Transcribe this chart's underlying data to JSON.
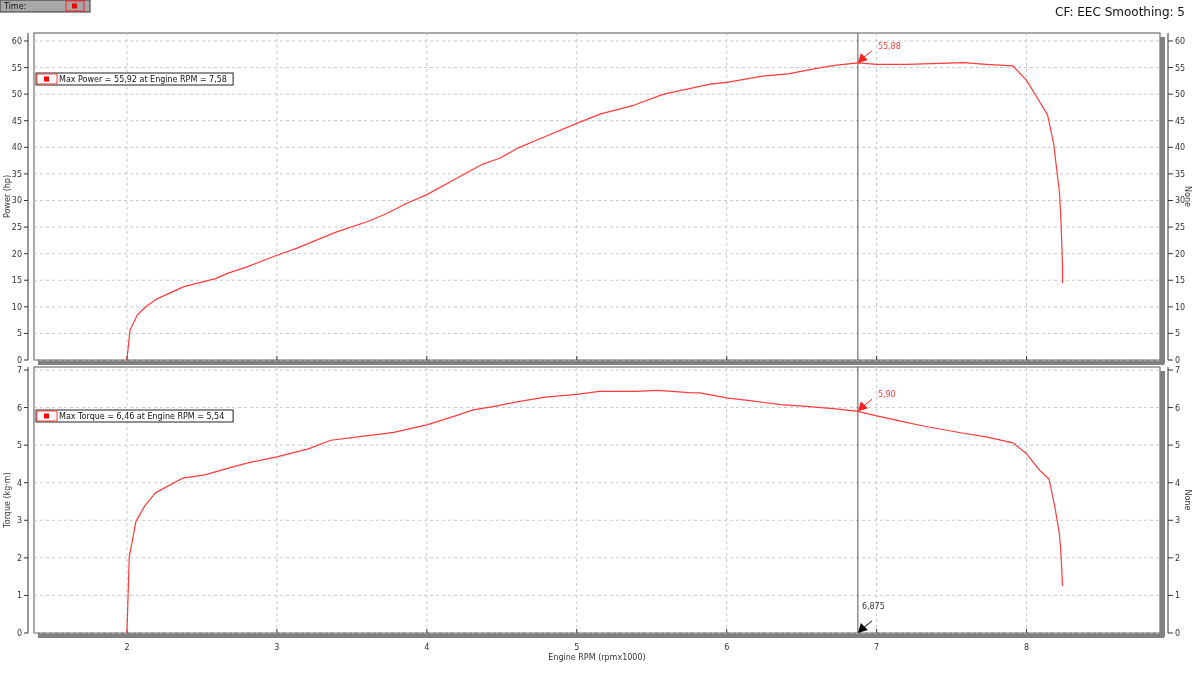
{
  "chart_data": [
    {
      "type": "line",
      "subtitle": "CF: EEC Smoothing: 5",
      "ylabel": "Power (hp)",
      "y2label": "None",
      "xlim": [
        1.38,
        8.89
      ],
      "xticks": [
        2,
        3,
        4,
        5,
        6,
        7,
        8
      ],
      "ylim": [
        0,
        61.5
      ],
      "yticks": [
        0,
        5,
        10,
        15,
        20,
        25,
        30,
        35,
        40,
        45,
        50,
        55,
        60
      ],
      "y2lim": [
        0,
        61.5
      ],
      "y2ticks": [
        0,
        5,
        10,
        15,
        20,
        25,
        30,
        35,
        40,
        45,
        50,
        55,
        60
      ],
      "tick_labels": "y",
      "grid": true,
      "series": [
        {
          "color": "#ff3b3b",
          "x": [
            2,
            2.02,
            2.07,
            2.13,
            2.2,
            2.38,
            2.59,
            2.67,
            2.81,
            3,
            3.13,
            3.39,
            3.61,
            3.73,
            3.86,
            4,
            4.2,
            4.37,
            4.49,
            4.61,
            4.77,
            5,
            5.16,
            5.38,
            5.58,
            5.89,
            6,
            6.24,
            6.41,
            6.59,
            6.72,
            6.875,
            7,
            7.2,
            7.42,
            7.58,
            7.73,
            7.91,
            8,
            8.08,
            8.14,
            8.18,
            8.22,
            8.23,
            8.24,
            8.24
          ],
          "values": [
            0,
            5.6,
            8.5,
            10.1,
            11.5,
            13.8,
            15.3,
            16.3,
            17.6,
            19.7,
            21,
            24,
            26.1,
            27.5,
            29.4,
            31.1,
            34.2,
            36.8,
            38,
            39.9,
            41.8,
            44.5,
            46.3,
            47.9,
            50,
            51.9,
            52.2,
            53.4,
            53.8,
            54.8,
            55.4,
            55.88,
            55.6,
            55.6,
            55.8,
            55.92,
            55.6,
            55.3,
            52.6,
            48.9,
            46.1,
            40.8,
            31.4,
            25.8,
            17.6,
            14.5
          ]
        }
      ],
      "ref_lines": [
        {
          "axis": "x",
          "value": 6.875,
          "color": "#555555"
        }
      ],
      "annotations": [
        "Time:",
        "Max Power = 55,92 at Engine RPM = 7,58",
        {
          "text": "55,88",
          "x": 6.875,
          "y": 55.88
        }
      ]
    },
    {
      "type": "line",
      "xlabel": "Engine RPM (rpmx1000)",
      "ylabel": "Torque (kg·m)",
      "y2label": "None",
      "xlim": [
        1.38,
        8.89
      ],
      "xticks": [
        2,
        3,
        4,
        5,
        6,
        7,
        8
      ],
      "ylim": [
        0,
        7.08
      ],
      "yticks": [
        0,
        1,
        2,
        3,
        4,
        5,
        6,
        7
      ],
      "y2lim": [
        0,
        7.08
      ],
      "y2ticks": [
        0,
        1,
        2,
        3,
        4,
        5,
        6,
        7
      ],
      "grid": true,
      "series": [
        {
          "color": "#ff3b3b",
          "x": [
            2,
            2.015,
            2.06,
            2.12,
            2.19,
            2.37,
            2.52,
            2.67,
            2.82,
            3,
            3.21,
            3.36,
            3.54,
            3.78,
            4,
            4.16,
            4.31,
            4.46,
            4.61,
            4.79,
            5,
            5.15,
            5.39,
            5.54,
            5.75,
            5.82,
            6,
            6.18,
            6.36,
            6.53,
            6.71,
            6.875,
            7,
            7.16,
            7.31,
            7.56,
            7.73,
            7.91,
            8,
            8.09,
            8.15,
            8.19,
            8.22,
            8.23,
            8.24
          ],
          "values": [
            0,
            2.01,
            2.97,
            3.39,
            3.73,
            4.12,
            4.21,
            4.38,
            4.54,
            4.69,
            4.9,
            5.13,
            5.22,
            5.34,
            5.54,
            5.74,
            5.94,
            6.04,
            6.16,
            6.28,
            6.35,
            6.43,
            6.43,
            6.46,
            6.4,
            6.39,
            6.26,
            6.17,
            6.08,
            6.03,
            5.97,
            5.9,
            5.78,
            5.64,
            5.51,
            5.33,
            5.22,
            5.06,
            4.77,
            4.32,
            4.1,
            3.33,
            2.61,
            2.07,
            1.26
          ]
        }
      ],
      "ref_lines": [
        {
          "axis": "x",
          "value": 6.875,
          "label": "6,875",
          "color": "#555555"
        }
      ],
      "annotations": [
        "Max Torque = 6,46 at Engine RPM = 5,54",
        {
          "text": "5,90",
          "x": 6.875,
          "y": 5.9
        }
      ]
    }
  ]
}
